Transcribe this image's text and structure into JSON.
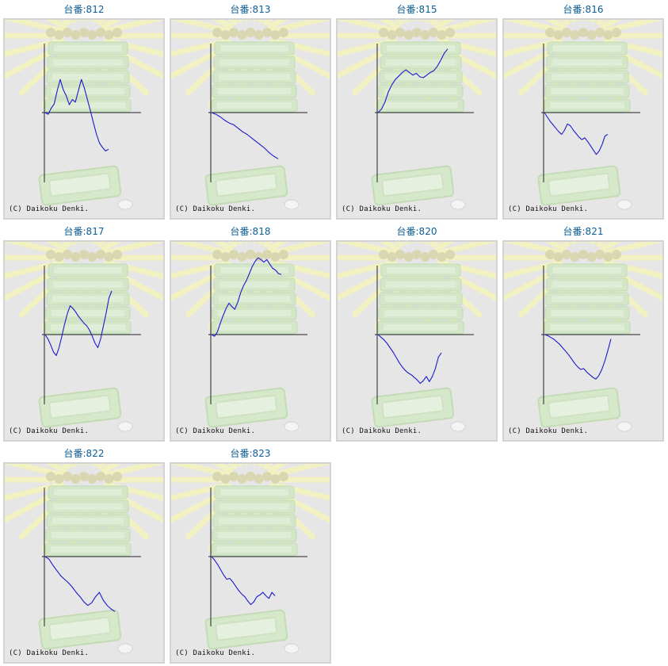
{
  "copyright": "(C) Daikoku Denki.",
  "colors": {
    "line": "#1a1acd",
    "title": "#0d5e96",
    "panel_bg": "#e6e6e6",
    "border": "#d3d3d3"
  },
  "machines": [
    {
      "label": "台番:812",
      "chart_data": {
        "type": "line",
        "y": [
          0,
          -0.2,
          0.5,
          1.0,
          2.5,
          3.8,
          2.6,
          1.9,
          0.9,
          1.5,
          1.2,
          2.5,
          3.8,
          2.8,
          1.5,
          0.2,
          -1.2,
          -2.5,
          -3.5,
          -4.0,
          -4.4,
          -4.2
        ]
      }
    },
    {
      "label": "台番:813",
      "chart_data": {
        "type": "line",
        "y": [
          0,
          -0.2,
          -0.5,
          -0.9,
          -1.2,
          -1.4,
          -1.8,
          -2.2,
          -2.5,
          -2.9,
          -3.3,
          -3.7,
          -4.1,
          -4.6,
          -5.0,
          -5.3
        ]
      }
    },
    {
      "label": "台番:815",
      "chart_data": {
        "type": "line",
        "y": [
          0,
          0.4,
          1.2,
          2.4,
          3.2,
          3.8,
          4.2,
          4.6,
          4.9,
          4.6,
          4.3,
          4.5,
          4.1,
          4.0,
          4.3,
          4.6,
          4.8,
          5.3,
          6.0,
          6.8,
          7.3
        ]
      }
    },
    {
      "label": "台番:816",
      "chart_data": {
        "type": "line",
        "y": [
          0,
          -0.5,
          -1.0,
          -1.4,
          -1.8,
          -2.2,
          -2.5,
          -2.0,
          -1.3,
          -1.5,
          -2.0,
          -2.4,
          -2.8,
          -3.1,
          -2.9,
          -3.3,
          -3.8,
          -4.3,
          -4.8,
          -4.4,
          -3.7,
          -2.7,
          -2.5
        ]
      }
    },
    {
      "label": "台番:817",
      "chart_data": {
        "type": "line",
        "y": [
          0,
          -0.5,
          -1.2,
          -2.0,
          -2.4,
          -1.5,
          -0.2,
          1.2,
          2.4,
          3.3,
          3.0,
          2.6,
          2.1,
          1.7,
          1.3,
          1.0,
          0.5,
          -0.2,
          -1.0,
          -1.5,
          -0.5,
          1.0,
          2.5,
          4.2,
          5.0
        ]
      }
    },
    {
      "label": "台番:818",
      "chart_data": {
        "type": "line",
        "y": [
          0,
          -0.2,
          0.3,
          1.3,
          2.2,
          3.0,
          3.6,
          3.2,
          2.9,
          3.7,
          4.8,
          5.6,
          6.2,
          7.0,
          7.8,
          8.4,
          8.8,
          8.6,
          8.3,
          8.6,
          8.1,
          7.6,
          7.4,
          7.0,
          6.9
        ]
      }
    },
    {
      "label": "台番:820",
      "chart_data": {
        "type": "line",
        "y": [
          0,
          -0.3,
          -0.6,
          -1.0,
          -1.5,
          -2.0,
          -2.6,
          -3.2,
          -3.7,
          -4.1,
          -4.4,
          -4.6,
          -4.9,
          -5.2,
          -5.6,
          -5.3,
          -4.8,
          -5.4,
          -4.8,
          -3.9,
          -2.6,
          -2.1
        ]
      }
    },
    {
      "label": "台番:821",
      "chart_data": {
        "type": "line",
        "y": [
          0,
          -0.1,
          -0.3,
          -0.5,
          -0.8,
          -1.1,
          -1.5,
          -1.9,
          -2.3,
          -2.8,
          -3.3,
          -3.7,
          -4.0,
          -3.9,
          -4.3,
          -4.6,
          -4.9,
          -5.1,
          -4.7,
          -4.0,
          -3.0,
          -1.8,
          -0.5
        ]
      }
    },
    {
      "label": "台番:822",
      "chart_data": {
        "type": "line",
        "y": [
          0,
          -0.3,
          -1.0,
          -1.6,
          -2.2,
          -2.6,
          -3.0,
          -3.5,
          -4.1,
          -4.6,
          -5.2,
          -5.6,
          -5.3,
          -4.6,
          -4.1,
          -5.0,
          -5.6,
          -6.0,
          -6.3
        ]
      }
    },
    {
      "label": "台番:823",
      "chart_data": {
        "type": "line",
        "y": [
          0,
          -0.4,
          -0.9,
          -1.5,
          -2.1,
          -2.6,
          -2.5,
          -2.9,
          -3.4,
          -3.9,
          -4.3,
          -4.6,
          -5.1,
          -5.5,
          -5.2,
          -4.6,
          -4.4,
          -4.1,
          -4.5,
          -4.8,
          -4.1,
          -4.5
        ]
      }
    }
  ]
}
